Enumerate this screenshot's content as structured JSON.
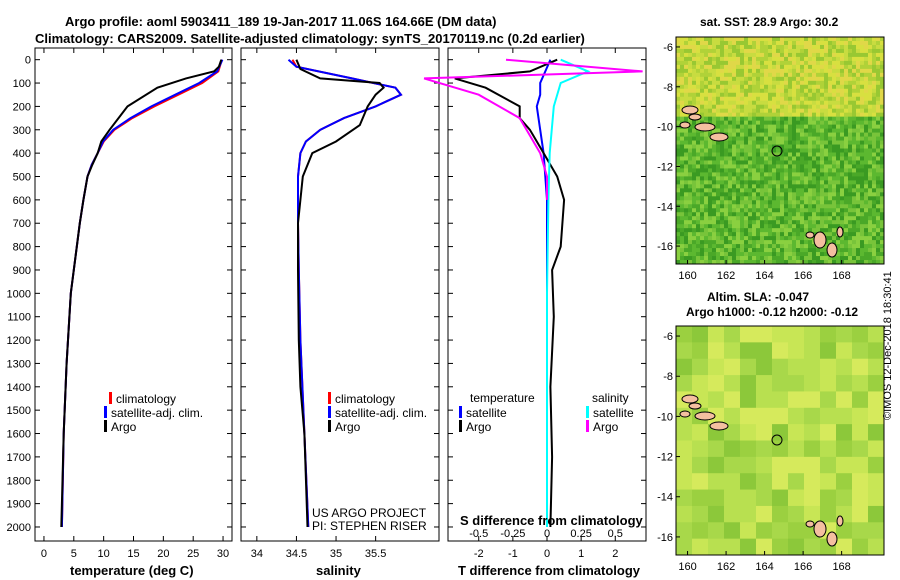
{
  "title_line1": "Argo profile: aoml 5903411_189 19-Jan-2017 11.06S 164.66E (DM data)",
  "title_line2": "Climatology: CARS2009. Satellite-adjusted climatology: synTS_20170119.nc (0.2d earlier)",
  "colors": {
    "climatology": "#ff0000",
    "satellite": "#0000ff",
    "argo": "#000000",
    "salinity_sat": "#00ffff",
    "salinity_argo": "#ff00ff"
  },
  "chart_data": [
    {
      "type": "line",
      "xlabel": "temperature (deg C)",
      "y_ticks": [
        0,
        100,
        200,
        300,
        400,
        500,
        600,
        700,
        800,
        900,
        1000,
        1100,
        1200,
        1300,
        1400,
        1500,
        1600,
        1700,
        1800,
        1900,
        2000
      ],
      "x_ticks": [
        0,
        5,
        10,
        15,
        20,
        25,
        30
      ],
      "xlim": [
        -1.5,
        31.5
      ],
      "ylim": [
        2060,
        -50
      ],
      "legend": [
        "climatology",
        "satellite-adj. clim.",
        "Argo"
      ],
      "series": [
        {
          "name": "climatology",
          "x": [
            29.8,
            29.2,
            26.5,
            22.5,
            18.5,
            14.8,
            11.8,
            10,
            9,
            8,
            7.3,
            6.6,
            6,
            5.5,
            4.5,
            3.8,
            3.3,
            3
          ],
          "y": [
            0,
            50,
            100,
            150,
            200,
            250,
            300,
            350,
            400,
            450,
            500,
            600,
            700,
            800,
            1000,
            1300,
            1600,
            2000
          ]
        },
        {
          "name": "satellite-adj. clim.",
          "x": [
            29.9,
            29.0,
            26,
            22,
            18,
            14.5,
            11.6,
            9.9,
            9,
            8,
            7.3,
            6.6,
            6,
            5.5,
            4.5,
            3.8,
            3.3,
            3
          ],
          "y": [
            0,
            50,
            100,
            150,
            200,
            250,
            300,
            350,
            400,
            450,
            500,
            600,
            700,
            800,
            1000,
            1300,
            1600,
            2000
          ]
        },
        {
          "name": "Argo",
          "x": [
            29.7,
            29.3,
            28.5,
            23.8,
            19,
            14,
            11,
            9.6,
            9,
            8.1,
            7.3,
            6.6,
            6,
            5.5,
            4.5,
            3.8,
            3.3,
            2.9
          ],
          "y": [
            0,
            30,
            50,
            80,
            120,
            200,
            300,
            350,
            400,
            450,
            500,
            600,
            700,
            800,
            1000,
            1300,
            1600,
            2000
          ]
        }
      ]
    },
    {
      "type": "line",
      "xlabel": "salinity",
      "x_ticks": [
        34,
        34.5,
        35,
        35.5
      ],
      "xlim": [
        33.8,
        36.3
      ],
      "ylim": [
        2060,
        -50
      ],
      "legend": [
        "climatology",
        "satellite-adj. clim.",
        "Argo"
      ],
      "series": [
        {
          "name": "climatology",
          "x": [
            34.45,
            34.5,
            35.2,
            35.75,
            35.82,
            35.5,
            35.1,
            34.8,
            34.62,
            34.55,
            34.52,
            34.52,
            34.53,
            34.55,
            34.6,
            34.65
          ],
          "y": [
            0,
            30,
            80,
            120,
            150,
            200,
            250,
            300,
            350,
            400,
            500,
            700,
            900,
            1200,
            1600,
            2000
          ]
        },
        {
          "name": "satellite-adj. clim.",
          "x": [
            34.4,
            34.5,
            35.2,
            35.75,
            35.82,
            35.5,
            35.1,
            34.8,
            34.62,
            34.55,
            34.52,
            34.52,
            34.53,
            34.55,
            34.6,
            34.65
          ],
          "y": [
            0,
            30,
            80,
            120,
            150,
            200,
            250,
            300,
            350,
            400,
            500,
            700,
            900,
            1200,
            1600,
            2000
          ]
        },
        {
          "name": "Argo",
          "x": [
            34.5,
            34.55,
            34.8,
            35.55,
            35.6,
            35.5,
            35.4,
            35.3,
            35.0,
            34.7,
            34.58,
            34.52,
            34.52,
            34.53,
            34.55,
            34.6,
            34.64
          ],
          "y": [
            0,
            40,
            80,
            100,
            120,
            150,
            200,
            280,
            350,
            400,
            500,
            700,
            900,
            1200,
            1400,
            1600,
            2000
          ]
        }
      ]
    },
    {
      "type": "line",
      "xlabel": "T difference from climatology",
      "x_ticks": [
        -2,
        -1,
        0,
        1,
        2
      ],
      "x_ticks_top": [
        "-0.5",
        "-0.25",
        "0",
        "0.25",
        "0.5"
      ],
      "top_axis_label": "S difference from climatology",
      "xlim": [
        -2.9,
        2.9
      ],
      "ylim": [
        2060,
        -50
      ],
      "legend_left_title": "temperature",
      "legend_right_title": "salinity",
      "legend_left": [
        "satellite",
        "Argo"
      ],
      "legend_right": [
        "satellite",
        "Argo"
      ],
      "series": [
        {
          "name": "T satellite",
          "x": [
            0.1,
            -0.05,
            -0.2,
            -0.2,
            -0.3,
            -0.2,
            -0.1,
            -0.05,
            0,
            0,
            0,
            0
          ],
          "y": [
            0,
            50,
            100,
            150,
            200,
            300,
            400,
            500,
            600,
            800,
            1200,
            2000
          ]
        },
        {
          "name": "T Argo",
          "x": [
            0.3,
            -0.5,
            -2.7,
            -1.8,
            -0.8,
            -0.8,
            -0.5,
            -0.3,
            -0.1,
            0.3,
            0.5,
            0.4,
            0.15,
            0.2,
            0.1,
            0.15,
            0.1
          ],
          "y": [
            0,
            50,
            80,
            120,
            200,
            250,
            300,
            350,
            400,
            500,
            600,
            800,
            900,
            1100,
            1400,
            1700,
            2000
          ]
        },
        {
          "name": "S satellite",
          "x": [
            0.1,
            0.3,
            0.1,
            0.05,
            0.02,
            0.01,
            0,
            0
          ],
          "y": [
            0,
            50,
            100,
            200,
            400,
            600,
            1000,
            2000
          ]
        },
        {
          "name": "S Argo",
          "x": [
            -0.3,
            0.7,
            -0.9,
            -0.5,
            -0.2,
            -0.05,
            0,
            0
          ],
          "y": [
            0,
            50,
            80,
            150,
            250,
            400,
            500,
            600
          ]
        }
      ]
    },
    {
      "type": "heatmap",
      "title": "sat. SST: 28.9 Argo: 30.2",
      "x_ticks": [
        "160",
        "162",
        "164",
        "166",
        "168"
      ],
      "y_ticks": [
        "-6",
        "-8",
        "-10",
        "-12",
        "-14",
        "-16"
      ]
    },
    {
      "type": "heatmap",
      "title_line1": "Altim. SLA: -0.047",
      "title_line2": "Argo h1000: -0.12 h2000: -0.12",
      "x_ticks": [
        "160",
        "162",
        "164",
        "166",
        "168"
      ],
      "y_ticks": [
        "-6",
        "-8",
        "-10",
        "-12",
        "-14",
        "-16"
      ]
    }
  ],
  "credit_line1": "US ARGO PROJECT",
  "credit_line2": "PI: STEPHEN RISER",
  "stamp": "©IMOS 12-Dec-2018 18:30:41"
}
